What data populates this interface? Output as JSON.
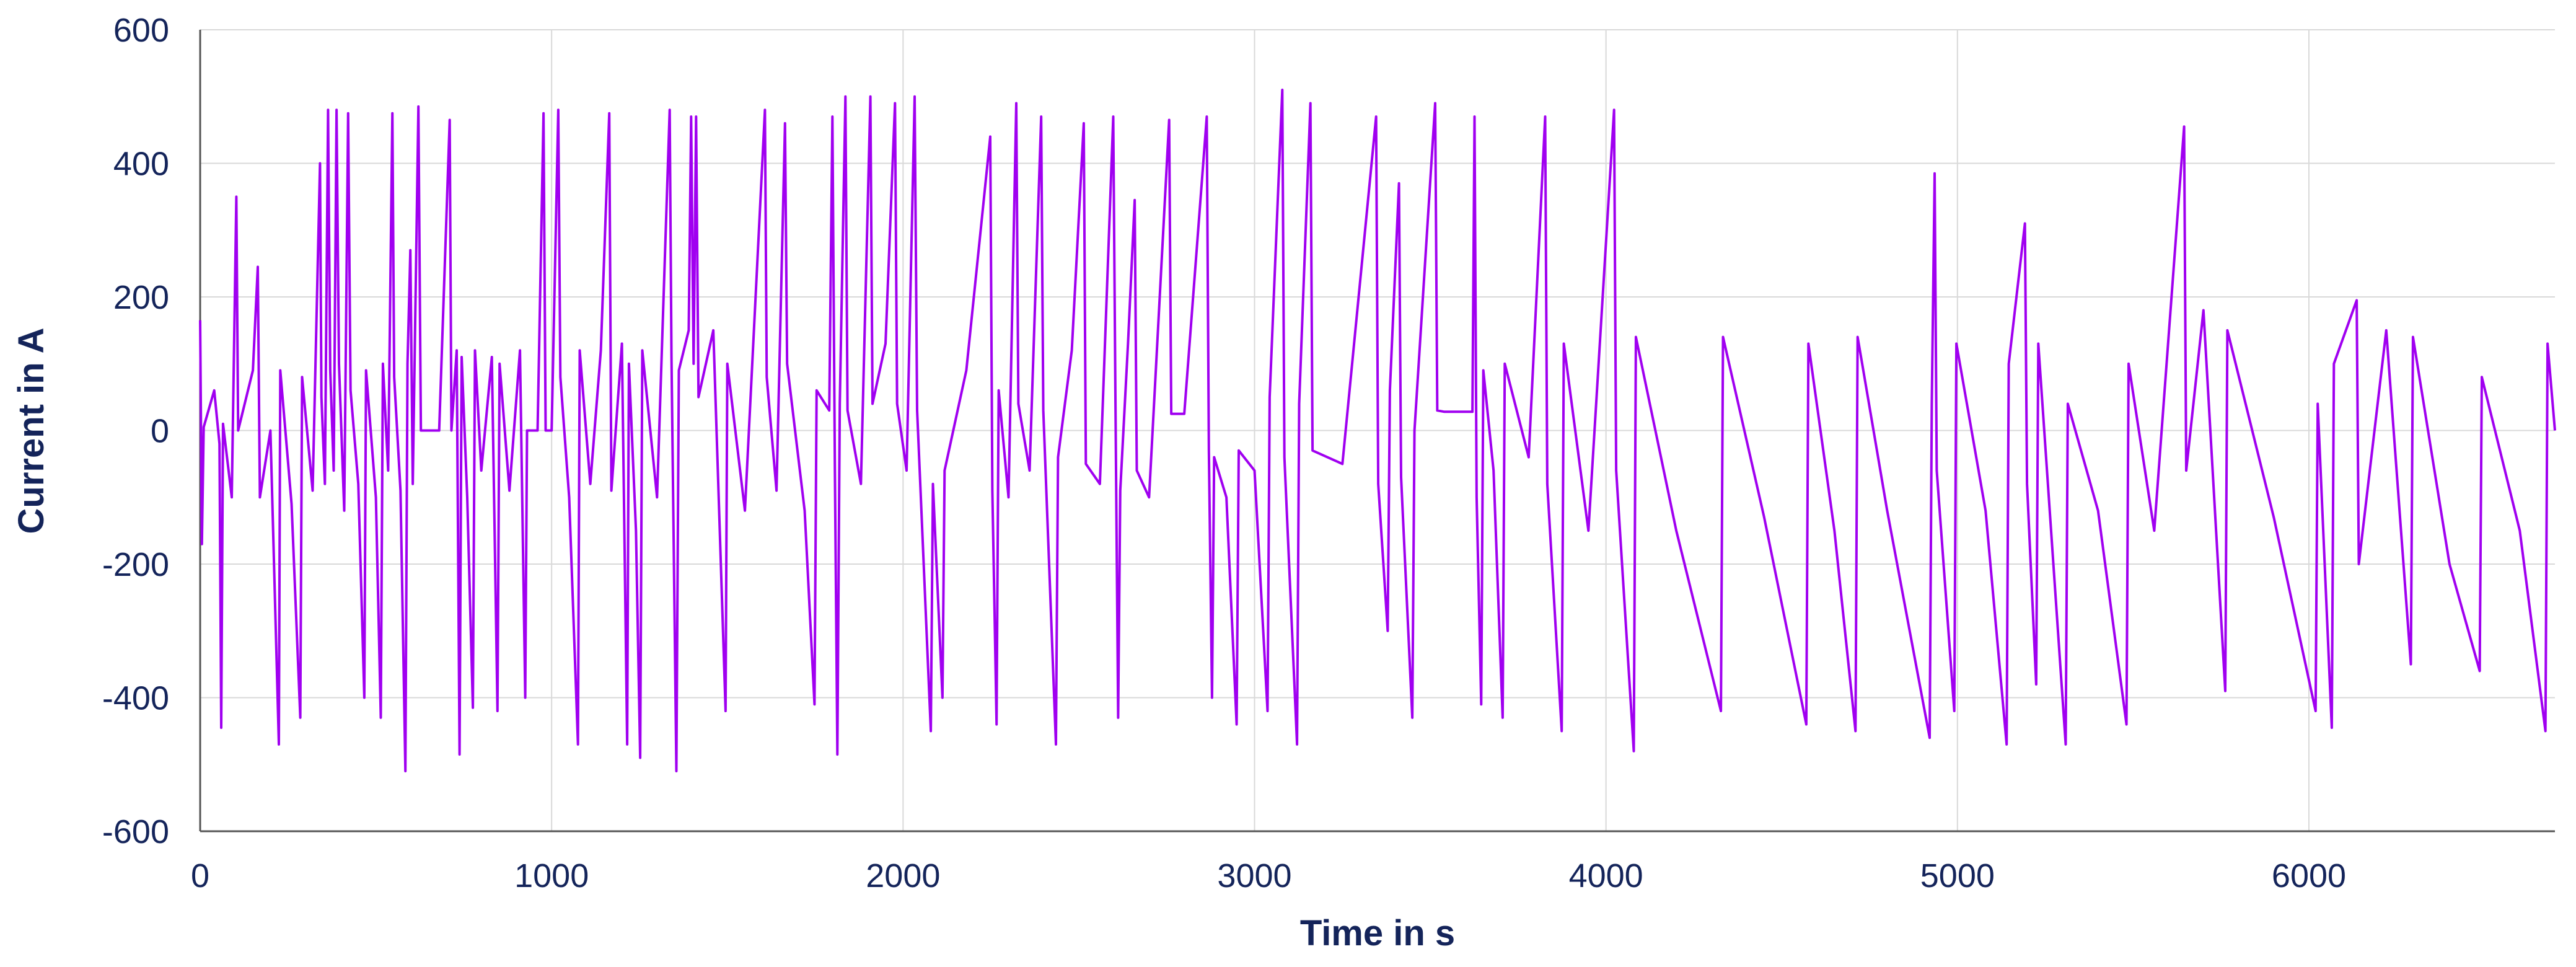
{
  "chart_data": {
    "type": "line",
    "xlabel": "Time in s",
    "ylabel": "Current in A",
    "color": "#a000f0",
    "grid": true,
    "xlim": [
      0,
      6700
    ],
    "xticks": [
      0,
      1000,
      2000,
      3000,
      4000,
      5000,
      6000
    ],
    "ylim": [
      -600,
      600
    ],
    "yticks": [
      -600,
      -400,
      -200,
      0,
      200,
      400,
      600
    ],
    "x": [
      0,
      5,
      10,
      40,
      55,
      60,
      65,
      90,
      103,
      108,
      150,
      164,
      170,
      200,
      224,
      228,
      260,
      285,
      290,
      320,
      341,
      345,
      355,
      364,
      370,
      380,
      388,
      395,
      410,
      421,
      428,
      450,
      467,
      472,
      500,
      514,
      520,
      535,
      547,
      552,
      570,
      584,
      590,
      598,
      605,
      621,
      628,
      650,
      680,
      710,
      715,
      730,
      738,
      744,
      760,
      776,
      782,
      800,
      830,
      846,
      852,
      880,
      910,
      925,
      930,
      960,
      977,
      983,
      1000,
      1019,
      1025,
      1050,
      1075,
      1080,
      1110,
      1140,
      1164,
      1170,
      1200,
      1215,
      1220,
      1240,
      1252,
      1258,
      1300,
      1336,
      1341,
      1355,
      1362,
      1390,
      1397,
      1404,
      1411,
      1418,
      1460,
      1495,
      1500,
      1550,
      1607,
      1612,
      1640,
      1664,
      1670,
      1720,
      1748,
      1754,
      1790,
      1799,
      1806,
      1813,
      1820,
      1836,
      1842,
      1880,
      1907,
      1913,
      1950,
      1977,
      1983,
      2010,
      2033,
      2040,
      2079,
      2085,
      2112,
      2118,
      2180,
      2248,
      2254,
      2266,
      2272,
      2300,
      2322,
      2328,
      2360,
      2393,
      2399,
      2435,
      2441,
      2480,
      2514,
      2520,
      2560,
      2598,
      2604,
      2612,
      2618,
      2640,
      2659,
      2665,
      2700,
      2757,
      2763,
      2800,
      2864,
      2870,
      2879,
      2885,
      2920,
      2949,
      2955,
      3000,
      3037,
      3043,
      3079,
      3085,
      3121,
      3127,
      3159,
      3165,
      3250,
      3346,
      3352,
      3379,
      3385,
      3411,
      3417,
      3449,
      3455,
      3514,
      3520,
      3540,
      3620,
      3626,
      3632,
      3645,
      3651,
      3680,
      3706,
      3712,
      3780,
      3827,
      3833,
      3874,
      3880,
      3950,
      4023,
      4029,
      4079,
      4085,
      4200,
      4327,
      4333,
      4450,
      4570,
      4576,
      4650,
      4710,
      4716,
      4800,
      4921,
      4927,
      4935,
      4941,
      4991,
      4997,
      5080,
      5140,
      5146,
      5192,
      5198,
      5224,
      5230,
      5308,
      5314,
      5400,
      5481,
      5487,
      5560,
      5645,
      5651,
      5700,
      5762,
      5768,
      5900,
      6019,
      6025,
      6065,
      6071,
      6136,
      6142,
      6220,
      6290,
      6296,
      6400,
      6486,
      6492,
      6600,
      6673,
      6679,
      6700
    ],
    "values": [
      165,
      -170,
      5,
      60,
      -20,
      -445,
      10,
      -100,
      350,
      0,
      90,
      245,
      -100,
      0,
      -470,
      90,
      -110,
      -430,
      80,
      -90,
      400,
      50,
      -80,
      480,
      90,
      -60,
      480,
      100,
      -120,
      475,
      60,
      -80,
      -400,
      90,
      -100,
      -430,
      100,
      -60,
      475,
      80,
      -90,
      -510,
      100,
      270,
      -80,
      485,
      0,
      0,
      0,
      465,
      0,
      120,
      -485,
      110,
      -100,
      -415,
      120,
      -60,
      110,
      -420,
      100,
      -90,
      120,
      -400,
      0,
      0,
      475,
      0,
      0,
      480,
      80,
      -100,
      -470,
      120,
      -80,
      120,
      475,
      -90,
      130,
      -470,
      100,
      -150,
      -490,
      120,
      -100,
      480,
      110,
      -510,
      90,
      150,
      470,
      100,
      470,
      50,
      150,
      -420,
      100,
      -120,
      480,
      80,
      -90,
      460,
      100,
      -120,
      -410,
      60,
      30,
      470,
      -60,
      -485,
      40,
      500,
      30,
      -80,
      500,
      40,
      130,
      490,
      40,
      -60,
      500,
      30,
      -450,
      -80,
      -400,
      -60,
      90,
      440,
      -90,
      -440,
      60,
      -100,
      490,
      40,
      -60,
      470,
      30,
      -470,
      -40,
      120,
      460,
      -50,
      -80,
      470,
      60,
      -430,
      -90,
      130,
      345,
      -60,
      -100,
      465,
      25,
      25,
      470,
      -30,
      -400,
      -40,
      -100,
      -440,
      -30,
      -60,
      -420,
      50,
      510,
      -40,
      -470,
      40,
      490,
      -30,
      -50,
      470,
      -80,
      -300,
      60,
      370,
      -70,
      -430,
      0,
      490,
      30,
      28,
      28,
      470,
      -100,
      -410,
      90,
      -60,
      -430,
      100,
      -40,
      470,
      -80,
      -450,
      130,
      -150,
      480,
      -60,
      -480,
      140,
      -150,
      -420,
      140,
      -130,
      -440,
      130,
      -150,
      -450,
      140,
      -120,
      -460,
      40,
      385,
      -60,
      -420,
      130,
      -120,
      -470,
      100,
      310,
      -80,
      -380,
      130,
      -470,
      40,
      -120,
      -440,
      100,
      -150,
      455,
      -60,
      180,
      -390,
      150,
      -130,
      -420,
      40,
      -445,
      100,
      195,
      -200,
      150,
      -350,
      140,
      -200,
      -360,
      80,
      -150,
      -450,
      130,
      0
    ]
  }
}
